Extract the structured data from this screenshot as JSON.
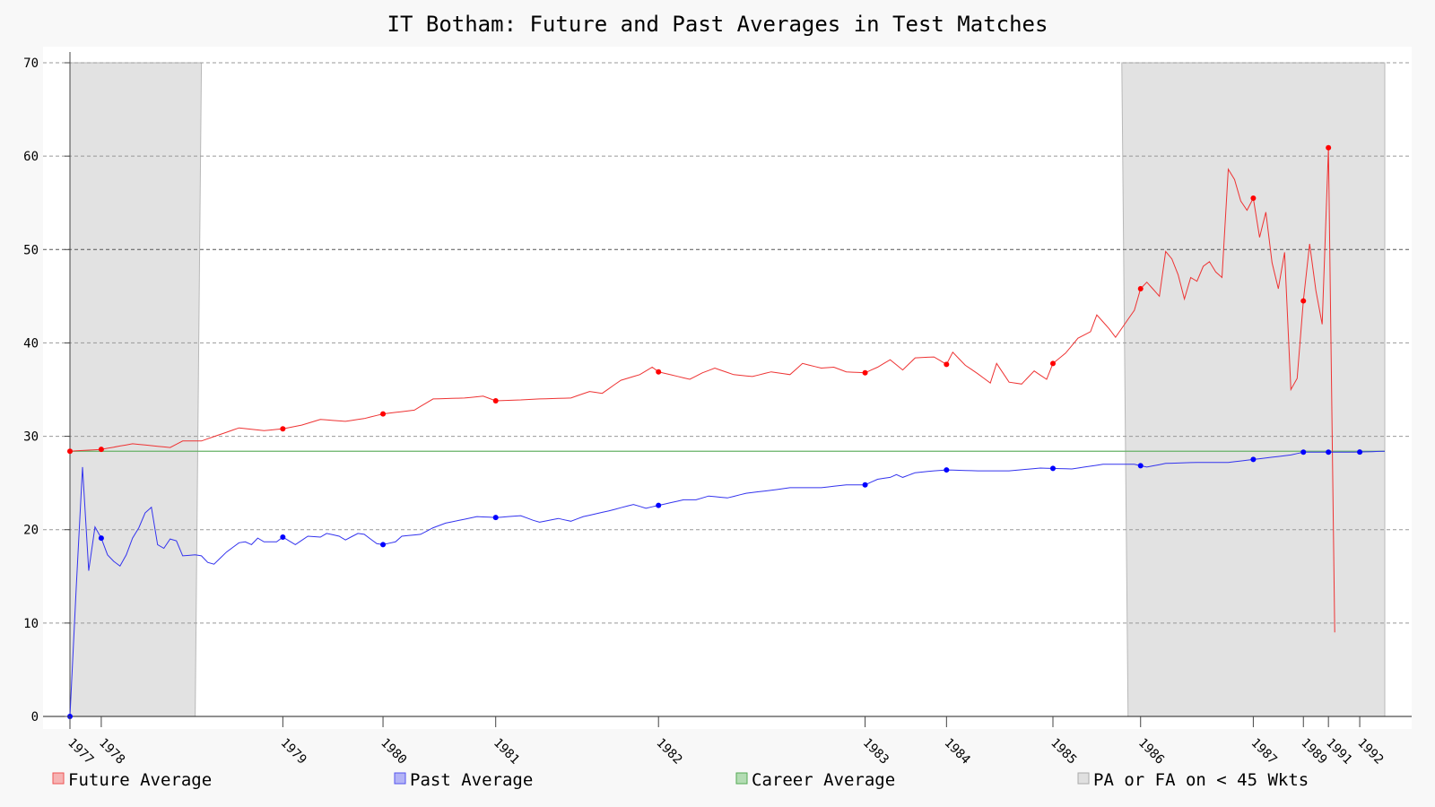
{
  "chart_data": {
    "type": "line",
    "title": "IT Botham: Future and Past Averages in Test Matches",
    "xlabel": "",
    "ylabel": "",
    "ylim": [
      0,
      70
    ],
    "y_ticks": [
      0,
      10,
      20,
      30,
      40,
      50,
      60,
      70
    ],
    "grid": "horizontal dashed",
    "legend_position": "bottom",
    "x_tick_labels": [
      {
        "label": "1977",
        "index": 0
      },
      {
        "label": "1978",
        "index": 5
      },
      {
        "label": "1979",
        "index": 34
      },
      {
        "label": "1980",
        "index": 50
      },
      {
        "label": "1981",
        "index": 68
      },
      {
        "label": "1982",
        "index": 94
      },
      {
        "label": "1983",
        "index": 127
      },
      {
        "label": "1984",
        "index": 140
      },
      {
        "label": "1985",
        "index": 157
      },
      {
        "label": "1986",
        "index": 171
      },
      {
        "label": "1987",
        "index": 189
      },
      {
        "label": "1989",
        "index": 197
      },
      {
        "label": "1991",
        "index": 201
      },
      {
        "label": "1992",
        "index": 206
      }
    ],
    "num_points": 211,
    "shaded_regions": [
      {
        "top_start": 0,
        "top_end": 21,
        "bottom_start": 0,
        "bottom_end": 20
      },
      {
        "top_start": 168,
        "top_end": 210,
        "bottom_start": 169,
        "bottom_end": 210
      }
    ],
    "career_average": 28.4,
    "series": [
      {
        "name": "Future Average",
        "color": "#ff0000",
        "keypoints": [
          [
            0,
            28.4
          ],
          [
            5,
            28.6
          ],
          [
            10,
            29.2
          ],
          [
            16,
            28.8
          ],
          [
            18,
            29.5
          ],
          [
            21,
            29.5
          ],
          [
            27,
            30.9
          ],
          [
            31,
            30.6
          ],
          [
            34,
            30.8
          ],
          [
            37,
            31.2
          ],
          [
            40,
            31.8
          ],
          [
            44,
            31.6
          ],
          [
            47,
            31.9
          ],
          [
            50,
            32.4
          ],
          [
            55,
            32.8
          ],
          [
            58,
            34.0
          ],
          [
            63,
            34.1
          ],
          [
            66,
            34.3
          ],
          [
            68,
            33.8
          ],
          [
            72,
            33.9
          ],
          [
            75,
            34.0
          ],
          [
            80,
            34.1
          ],
          [
            83,
            34.8
          ],
          [
            85,
            34.6
          ],
          [
            88,
            36.0
          ],
          [
            91,
            36.6
          ],
          [
            93,
            37.4
          ],
          [
            94,
            36.9
          ],
          [
            99,
            36.1
          ],
          [
            101,
            36.8
          ],
          [
            103,
            37.3
          ],
          [
            106,
            36.6
          ],
          [
            109,
            36.4
          ],
          [
            112,
            36.9
          ],
          [
            115,
            36.6
          ],
          [
            117,
            37.8
          ],
          [
            120,
            37.3
          ],
          [
            122,
            37.4
          ],
          [
            124,
            36.9
          ],
          [
            127,
            36.8
          ],
          [
            129,
            37.4
          ],
          [
            131,
            38.2
          ],
          [
            133,
            37.1
          ],
          [
            135,
            38.4
          ],
          [
            138,
            38.5
          ],
          [
            140,
            37.7
          ],
          [
            141,
            39.0
          ],
          [
            143,
            37.6
          ],
          [
            145,
            36.7
          ],
          [
            147,
            35.7
          ],
          [
            148,
            37.8
          ],
          [
            150,
            35.8
          ],
          [
            152,
            35.6
          ],
          [
            154,
            37.0
          ],
          [
            156,
            36.1
          ],
          [
            157,
            37.8
          ],
          [
            159,
            38.9
          ],
          [
            161,
            40.5
          ],
          [
            163,
            41.2
          ],
          [
            164,
            43.0
          ],
          [
            166,
            41.5
          ],
          [
            167,
            40.6
          ],
          [
            170,
            43.5
          ],
          [
            171,
            45.8
          ],
          [
            172,
            46.5
          ],
          [
            174,
            45.0
          ],
          [
            175,
            49.8
          ],
          [
            176,
            49.0
          ],
          [
            177,
            47.3
          ],
          [
            178,
            44.7
          ],
          [
            179,
            47.0
          ],
          [
            180,
            46.6
          ],
          [
            181,
            48.2
          ],
          [
            182,
            48.7
          ],
          [
            183,
            47.6
          ],
          [
            184,
            47.0
          ],
          [
            185,
            58.6
          ],
          [
            186,
            57.5
          ],
          [
            187,
            55.2
          ],
          [
            188,
            54.2
          ],
          [
            189,
            55.5
          ],
          [
            190,
            51.3
          ],
          [
            191,
            54.0
          ],
          [
            192,
            48.6
          ],
          [
            193,
            45.8
          ],
          [
            194,
            49.7
          ],
          [
            195,
            35.0
          ],
          [
            196,
            36.2
          ],
          [
            197,
            44.5
          ],
          [
            198,
            50.6
          ],
          [
            199,
            45.6
          ],
          [
            200,
            42.0
          ],
          [
            201,
            60.9
          ],
          [
            202,
            9.0
          ]
        ]
      },
      {
        "name": "Past Average",
        "color": "#0000ff",
        "keypoints": [
          [
            0,
            0
          ],
          [
            1,
            13.8
          ],
          [
            2,
            26.7
          ],
          [
            3,
            15.6
          ],
          [
            4,
            20.3
          ],
          [
            5,
            19.1
          ],
          [
            6,
            17.3
          ],
          [
            7,
            16.6
          ],
          [
            8,
            16.1
          ],
          [
            9,
            17.3
          ],
          [
            10,
            19.1
          ],
          [
            11,
            20.2
          ],
          [
            12,
            21.8
          ],
          [
            13,
            22.4
          ],
          [
            14,
            18.4
          ],
          [
            15,
            18.0
          ],
          [
            16,
            19.0
          ],
          [
            17,
            18.8
          ],
          [
            18,
            17.2
          ],
          [
            20,
            17.3
          ],
          [
            21,
            17.2
          ],
          [
            22,
            16.5
          ],
          [
            23,
            16.3
          ],
          [
            25,
            17.6
          ],
          [
            27,
            18.6
          ],
          [
            28,
            18.7
          ],
          [
            29,
            18.4
          ],
          [
            30,
            19.1
          ],
          [
            31,
            18.7
          ],
          [
            33,
            18.7
          ],
          [
            34,
            19.2
          ],
          [
            36,
            18.4
          ],
          [
            38,
            19.3
          ],
          [
            40,
            19.2
          ],
          [
            41,
            19.6
          ],
          [
            43,
            19.3
          ],
          [
            44,
            18.9
          ],
          [
            46,
            19.6
          ],
          [
            47,
            19.5
          ],
          [
            49,
            18.5
          ],
          [
            50,
            18.4
          ],
          [
            52,
            18.7
          ],
          [
            53,
            19.3
          ],
          [
            56,
            19.5
          ],
          [
            58,
            20.2
          ],
          [
            60,
            20.7
          ],
          [
            65,
            21.4
          ],
          [
            68,
            21.3
          ],
          [
            72,
            21.5
          ],
          [
            74,
            21.0
          ],
          [
            75,
            20.8
          ],
          [
            78,
            21.2
          ],
          [
            80,
            20.9
          ],
          [
            82,
            21.4
          ],
          [
            84,
            21.7
          ],
          [
            86,
            22.0
          ],
          [
            90,
            22.7
          ],
          [
            92,
            22.3
          ],
          [
            96,
            22.9
          ],
          [
            98,
            23.2
          ],
          [
            100,
            23.2
          ],
          [
            102,
            23.6
          ],
          [
            105,
            23.4
          ],
          [
            108,
            23.9
          ],
          [
            113,
            24.3
          ],
          [
            115,
            24.5
          ],
          [
            120,
            24.5
          ],
          [
            124,
            24.8
          ],
          [
            127,
            24.8
          ],
          [
            129,
            25.4
          ],
          [
            131,
            25.6
          ],
          [
            132,
            25.9
          ],
          [
            133,
            25.6
          ],
          [
            135,
            26.1
          ],
          [
            138,
            26.3
          ],
          [
            140,
            26.4
          ],
          [
            145,
            26.3
          ],
          [
            150,
            26.3
          ],
          [
            155,
            26.6
          ],
          [
            160,
            26.5
          ],
          [
            165,
            27.0
          ],
          [
            170,
            27.0
          ],
          [
            172,
            26.7
          ],
          [
            175,
            27.1
          ],
          [
            180,
            27.2
          ],
          [
            185,
            27.2
          ],
          [
            190,
            27.6
          ],
          [
            195,
            28.0
          ],
          [
            197,
            28.3
          ],
          [
            200,
            28.3
          ],
          [
            205,
            28.3
          ],
          [
            210,
            28.4
          ]
        ]
      },
      {
        "name": "Career Average",
        "color": "#00aa00"
      },
      {
        "name": "PA or FA on < 45 Wkts",
        "color": "#cccccc"
      }
    ]
  }
}
